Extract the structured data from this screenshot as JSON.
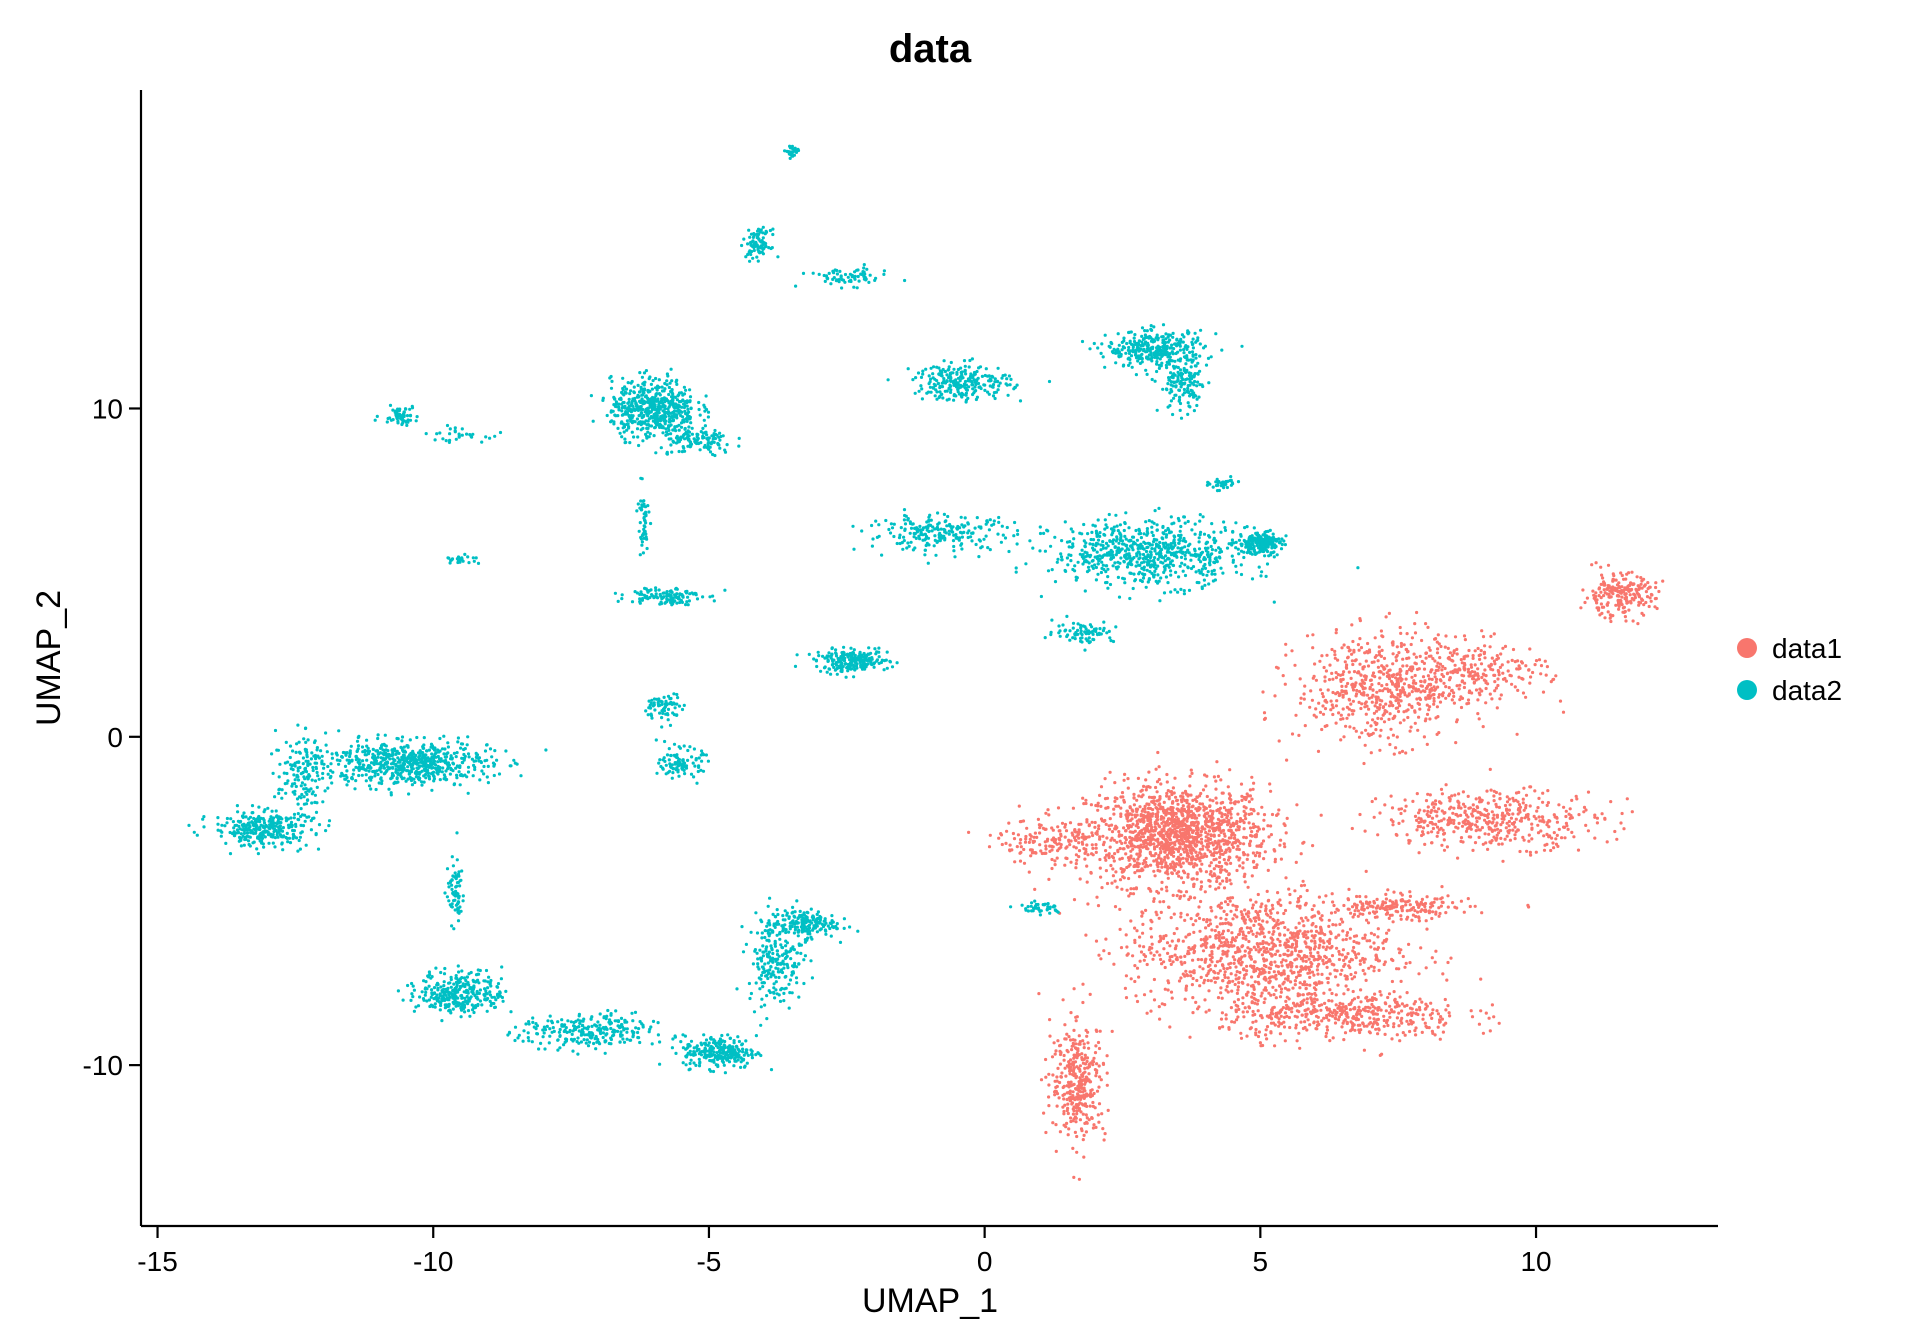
{
  "chart_data": {
    "type": "scatter",
    "title": "data",
    "xlabel": "UMAP_1",
    "ylabel": "UMAP_2",
    "xlim": [
      -15.3,
      13.3
    ],
    "ylim": [
      -14.9,
      19.7
    ],
    "x_ticks": [
      -15,
      -10,
      -5,
      0,
      5,
      10
    ],
    "x_tick_labels": [
      "-15",
      "-10",
      "-5",
      "0",
      "5",
      "10"
    ],
    "y_ticks": [
      -10,
      0,
      10
    ],
    "y_tick_labels": [
      "-10",
      "0",
      "10"
    ],
    "grid": false,
    "legend_position": "right",
    "series": [
      {
        "name": "data1",
        "color": "#F8766D",
        "clusters": [
          {
            "center": [
              3.5,
              -3.0
            ],
            "spread": [
              1.5,
              1.4
            ],
            "points": 1400
          },
          {
            "center": [
              5.0,
              -6.5
            ],
            "spread": [
              2.2,
              1.6
            ],
            "points": 1100
          },
          {
            "center": [
              6.5,
              -8.5
            ],
            "spread": [
              2.0,
              0.7
            ],
            "points": 450
          },
          {
            "center": [
              7.2,
              1.5
            ],
            "spread": [
              1.4,
              1.5
            ],
            "points": 600
          },
          {
            "center": [
              9.2,
              -2.5
            ],
            "spread": [
              1.8,
              0.8
            ],
            "points": 450
          },
          {
            "center": [
              11.5,
              4.3
            ],
            "spread": [
              0.6,
              0.6
            ],
            "points": 220
          },
          {
            "center": [
              1.7,
              -10.5
            ],
            "spread": [
              0.45,
              1.6
            ],
            "points": 350
          },
          {
            "center": [
              1.2,
              -3.2
            ],
            "spread": [
              0.9,
              0.6
            ],
            "points": 150
          },
          {
            "center": [
              7.5,
              -5.2
            ],
            "spread": [
              1.2,
              0.35
            ],
            "points": 180
          },
          {
            "center": [
              9.0,
              2.0
            ],
            "spread": [
              1.1,
              0.8
            ],
            "points": 220
          }
        ]
      },
      {
        "name": "data2",
        "color": "#00BFC4",
        "clusters": [
          {
            "center": [
              -10.5,
              -0.8
            ],
            "spread": [
              1.4,
              0.6
            ],
            "points": 650
          },
          {
            "center": [
              -13.1,
              -2.8
            ],
            "spread": [
              0.8,
              0.5
            ],
            "points": 300
          },
          {
            "center": [
              -12.4,
              -1.2
            ],
            "spread": [
              0.4,
              1.1
            ],
            "points": 140
          },
          {
            "center": [
              -9.5,
              -7.8
            ],
            "spread": [
              0.7,
              0.6
            ],
            "points": 320
          },
          {
            "center": [
              -7.2,
              -9.0
            ],
            "spread": [
              1.1,
              0.5
            ],
            "points": 260
          },
          {
            "center": [
              -4.8,
              -9.6
            ],
            "spread": [
              0.6,
              0.45
            ],
            "points": 260
          },
          {
            "center": [
              -3.8,
              -6.8
            ],
            "spread": [
              0.45,
              1.2
            ],
            "points": 220
          },
          {
            "center": [
              -3.3,
              -5.7
            ],
            "spread": [
              0.55,
              0.4
            ],
            "points": 180
          },
          {
            "center": [
              -9.6,
              -4.7
            ],
            "spread": [
              0.15,
              0.9
            ],
            "points": 70
          },
          {
            "center": [
              -6.0,
              10.0
            ],
            "spread": [
              0.7,
              0.8
            ],
            "points": 550
          },
          {
            "center": [
              -5.2,
              9.0
            ],
            "spread": [
              0.6,
              0.4
            ],
            "points": 120
          },
          {
            "center": [
              -10.6,
              9.8
            ],
            "spread": [
              0.3,
              0.25
            ],
            "points": 60
          },
          {
            "center": [
              -9.6,
              9.2
            ],
            "spread": [
              0.5,
              0.2
            ],
            "points": 30
          },
          {
            "center": [
              -4.1,
              15.0
            ],
            "spread": [
              0.2,
              0.4
            ],
            "points": 90
          },
          {
            "center": [
              -2.5,
              14.0
            ],
            "spread": [
              0.7,
              0.25
            ],
            "points": 70
          },
          {
            "center": [
              -3.5,
              17.8
            ],
            "spread": [
              0.1,
              0.2
            ],
            "points": 30
          },
          {
            "center": [
              3.0,
              5.6
            ],
            "spread": [
              1.6,
              0.9
            ],
            "points": 700
          },
          {
            "center": [
              5.0,
              5.9
            ],
            "spread": [
              0.35,
              0.3
            ],
            "points": 200
          },
          {
            "center": [
              -0.8,
              6.2
            ],
            "spread": [
              1.2,
              0.5
            ],
            "points": 220
          },
          {
            "center": [
              1.8,
              3.2
            ],
            "spread": [
              0.5,
              0.3
            ],
            "points": 80
          },
          {
            "center": [
              3.1,
              11.8
            ],
            "spread": [
              0.8,
              0.5
            ],
            "points": 320
          },
          {
            "center": [
              3.6,
              10.7
            ],
            "spread": [
              0.4,
              0.8
            ],
            "points": 140
          },
          {
            "center": [
              -0.4,
              10.8
            ],
            "spread": [
              0.8,
              0.5
            ],
            "points": 250
          },
          {
            "center": [
              -2.4,
              2.3
            ],
            "spread": [
              0.6,
              0.3
            ],
            "points": 230
          },
          {
            "center": [
              -5.8,
              4.3
            ],
            "spread": [
              0.6,
              0.25
            ],
            "points": 120
          },
          {
            "center": [
              -6.2,
              6.5
            ],
            "spread": [
              0.1,
              1.1
            ],
            "points": 50
          },
          {
            "center": [
              -5.8,
              0.9
            ],
            "spread": [
              0.3,
              0.4
            ],
            "points": 70
          },
          {
            "center": [
              -5.5,
              -0.8
            ],
            "spread": [
              0.35,
              0.4
            ],
            "points": 100
          },
          {
            "center": [
              -9.5,
              5.4
            ],
            "spread": [
              0.3,
              0.12
            ],
            "points": 25
          },
          {
            "center": [
              4.3,
              7.7
            ],
            "spread": [
              0.2,
              0.15
            ],
            "points": 40
          },
          {
            "center": [
              1.0,
              -5.2
            ],
            "spread": [
              0.4,
              0.2
            ],
            "points": 40
          }
        ]
      }
    ]
  }
}
